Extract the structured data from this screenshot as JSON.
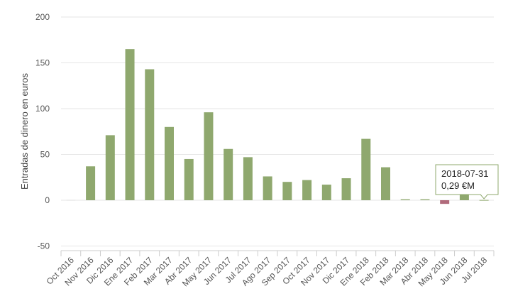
{
  "chart_data": {
    "type": "bar",
    "ylabel": "Entradas de dinero en euros",
    "ylim": [
      -50,
      200
    ],
    "yticks": [
      "-50",
      "0",
      "50",
      "100",
      "150",
      "200"
    ],
    "grid": true,
    "categories": [
      "Oct 2016",
      "Nov 2016",
      "Dic 2016",
      "Ene 2017",
      "Feb 2017",
      "Mar 2017",
      "Abr 2017",
      "May 2017",
      "Jun 2017",
      "Jul 2017",
      "Ago 2017",
      "Sep 2017",
      "Oct 2017",
      "Nov 2017",
      "Dic 2017",
      "Ene 2018",
      "Feb 2018",
      "Mar 2018",
      "Abr 2018",
      "May 2018",
      "Jun 2018",
      "Jul 2018"
    ],
    "values": [
      0,
      37,
      71,
      165,
      143,
      80,
      45,
      96,
      56,
      47,
      26,
      20,
      22,
      17,
      24,
      67,
      36,
      1,
      1,
      -4,
      6,
      0.29
    ],
    "colors": {
      "positive": "#8fa86e",
      "negative": "#b06a7b",
      "grid": "#e6e6e6",
      "axis": "#cccccc",
      "tooltip_border": "#8fa86e"
    },
    "tooltip": {
      "line1": "2018-07-31",
      "line2": "0,29 €M"
    }
  }
}
